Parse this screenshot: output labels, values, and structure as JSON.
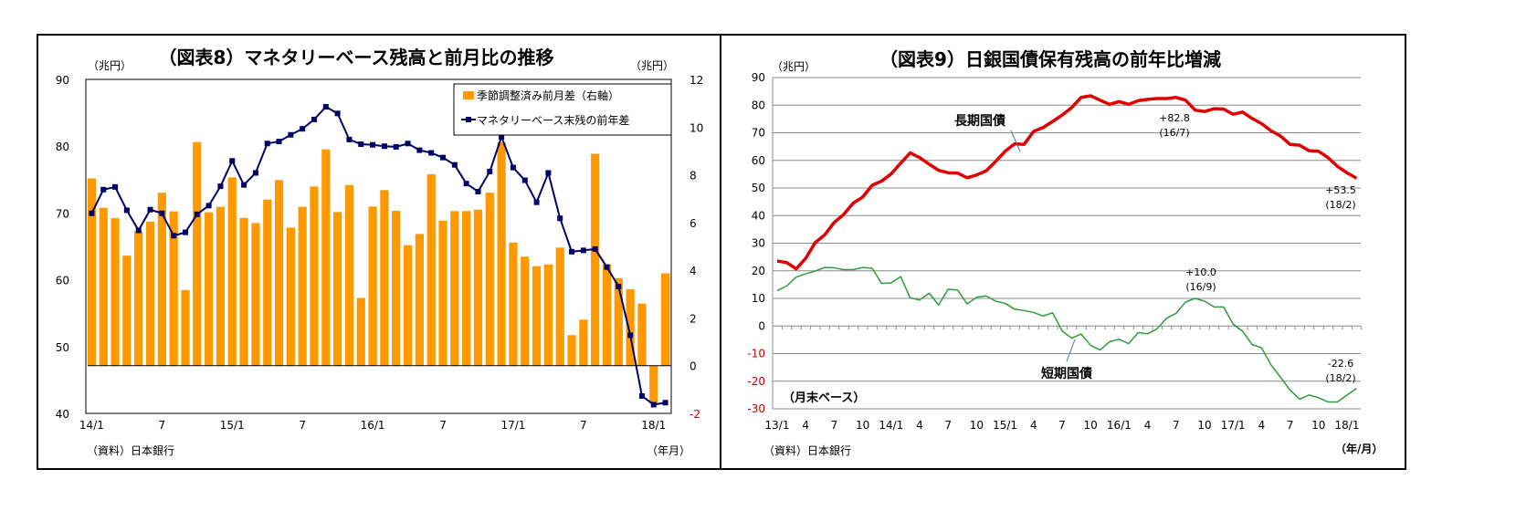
{
  "colors": {
    "bar": "#FF9900",
    "line_left": "#000066",
    "long_term": "#E00000",
    "short_term": "#2E9B3E",
    "negative_label": "#C00000"
  },
  "chart_data": [
    {
      "type": "bar+line",
      "title": "（図表8）マネタリーベース残高と前月比の推移",
      "ylabel_left": "（兆円）",
      "ylabel_right": "（兆円）",
      "xlabel": "（年月）",
      "source": "（資料）日本銀行",
      "ylim_left": [
        40,
        90
      ],
      "yticks_left": [
        "90",
        "80",
        "70",
        "60",
        "50",
        "40"
      ],
      "ylim_right": [
        -2,
        12
      ],
      "yticks_right": [
        "12",
        "10",
        "8",
        "6",
        "4",
        "2",
        "0",
        "-2"
      ],
      "x_tick_labels": [
        "14/1",
        "7",
        "15/1",
        "7",
        "16/1",
        "7",
        "17/1",
        "7",
        "18/1"
      ],
      "legend_position": "top-right",
      "grid": false,
      "series": [
        {
          "name": "季節調整済み前月差（右軸）",
          "kind": "bar",
          "axis": "right",
          "values": [
            7.85,
            6.62,
            6.18,
            4.61,
            5.63,
            6.04,
            7.25,
            6.47,
            3.17,
            9.37,
            6.43,
            6.66,
            7.89,
            6.19,
            5.98,
            6.96,
            7.78,
            5.79,
            6.66,
            7.51,
            9.07,
            6.44,
            7.57,
            2.84,
            6.67,
            7.36,
            6.49,
            5.05,
            5.52,
            8.02,
            6.08,
            6.48,
            6.48,
            6.54,
            7.25,
            9.36,
            5.16,
            4.57,
            4.17,
            4.24,
            4.95,
            1.28,
            1.93,
            8.88,
            4.25,
            3.67,
            3.2,
            2.6,
            -1.6,
            3.87
          ]
        },
        {
          "name": "マネタリーベース末残の前年差",
          "kind": "line",
          "axis": "left",
          "values": [
            69.95,
            73.5,
            73.9,
            70.4,
            67.4,
            70.5,
            69.95,
            66.6,
            67.1,
            69.8,
            71.1,
            74.0,
            77.8,
            74.2,
            76.0,
            80.4,
            80.7,
            81.7,
            82.6,
            84.0,
            85.9,
            84.9,
            81.0,
            80.3,
            80.2,
            80.0,
            79.9,
            80.4,
            79.4,
            79.0,
            78.3,
            77.2,
            74.4,
            73.2,
            76.2,
            81.4,
            76.8,
            74.9,
            71.6,
            76.0,
            69.2,
            64.2,
            64.4,
            64.6,
            61.9,
            59.0,
            51.7,
            42.6,
            41.3,
            41.6
          ]
        }
      ]
    },
    {
      "type": "line",
      "title": "（図表9）日銀国債保有残高の前年比増減",
      "ylabel": "（兆円）",
      "xlabel": "（年/月）",
      "source": "（資料）日本銀行",
      "note": "（月末ベース）",
      "ylim": [
        -30,
        90
      ],
      "yticks": [
        "90",
        "80",
        "70",
        "60",
        "50",
        "40",
        "30",
        "20",
        "10",
        "0",
        "-10",
        "-20",
        "-30"
      ],
      "x_tick_labels": [
        "13/1",
        "4",
        "7",
        "10",
        "14/1",
        "4",
        "7",
        "10",
        "15/1",
        "4",
        "7",
        "10",
        "16/1",
        "4",
        "7",
        "10",
        "17/1",
        "4",
        "7",
        "10",
        "18/1"
      ],
      "grid": true,
      "series": [
        {
          "name": "長期国債",
          "values": [
            23.5,
            23.0,
            20.7,
            24.5,
            30.2,
            33.0,
            37.5,
            40.4,
            44.5,
            46.7,
            51.0,
            52.5,
            55.1,
            59.0,
            62.7,
            61.0,
            58.6,
            56.4,
            55.5,
            55.4,
            53.7,
            54.7,
            56.2,
            59.6,
            63.3,
            66.0,
            65.8,
            70.5,
            71.9,
            74.1,
            76.4,
            79.1,
            82.8,
            83.4,
            81.8,
            80.3,
            81.3,
            80.3,
            81.6,
            82.1,
            82.4,
            82.4,
            82.8,
            81.8,
            78.2,
            77.7,
            78.7,
            78.6,
            76.7,
            77.5,
            75.2,
            73.3,
            70.7,
            68.8,
            65.8,
            65.5,
            63.5,
            63.3,
            61.0,
            57.8,
            55.5,
            53.5
          ]
        },
        {
          "name": "短期国債",
          "values": [
            12.8,
            14.5,
            17.7,
            18.9,
            19.9,
            21.2,
            21.1,
            20.4,
            20.4,
            21.2,
            20.9,
            15.4,
            15.6,
            17.9,
            10.2,
            9.4,
            11.9,
            7.6,
            13.3,
            13.0,
            8.0,
            10.4,
            10.9,
            9.0,
            8.2,
            6.1,
            5.6,
            4.9,
            3.6,
            4.8,
            -1.8,
            -4.4,
            -2.9,
            -7.0,
            -8.7,
            -5.7,
            -4.8,
            -6.4,
            -2.4,
            -2.8,
            -1.0,
            2.8,
            4.6,
            8.7,
            10.0,
            9.0,
            6.9,
            6.9,
            0.7,
            -1.9,
            -6.7,
            -7.9,
            -14.1,
            -18.6,
            -23.2,
            -26.5,
            -25.0,
            -26.0,
            -27.5,
            -27.5,
            -25.0,
            -22.6
          ]
        }
      ],
      "annotations": [
        {
          "value": "+82.8",
          "period": "(16/7)"
        },
        {
          "value": "+10.0",
          "period": "(16/9)"
        },
        {
          "value": "+53.5",
          "period": "(18/2)"
        },
        {
          "value": "-22.6",
          "period": "(18/2)"
        }
      ]
    }
  ]
}
